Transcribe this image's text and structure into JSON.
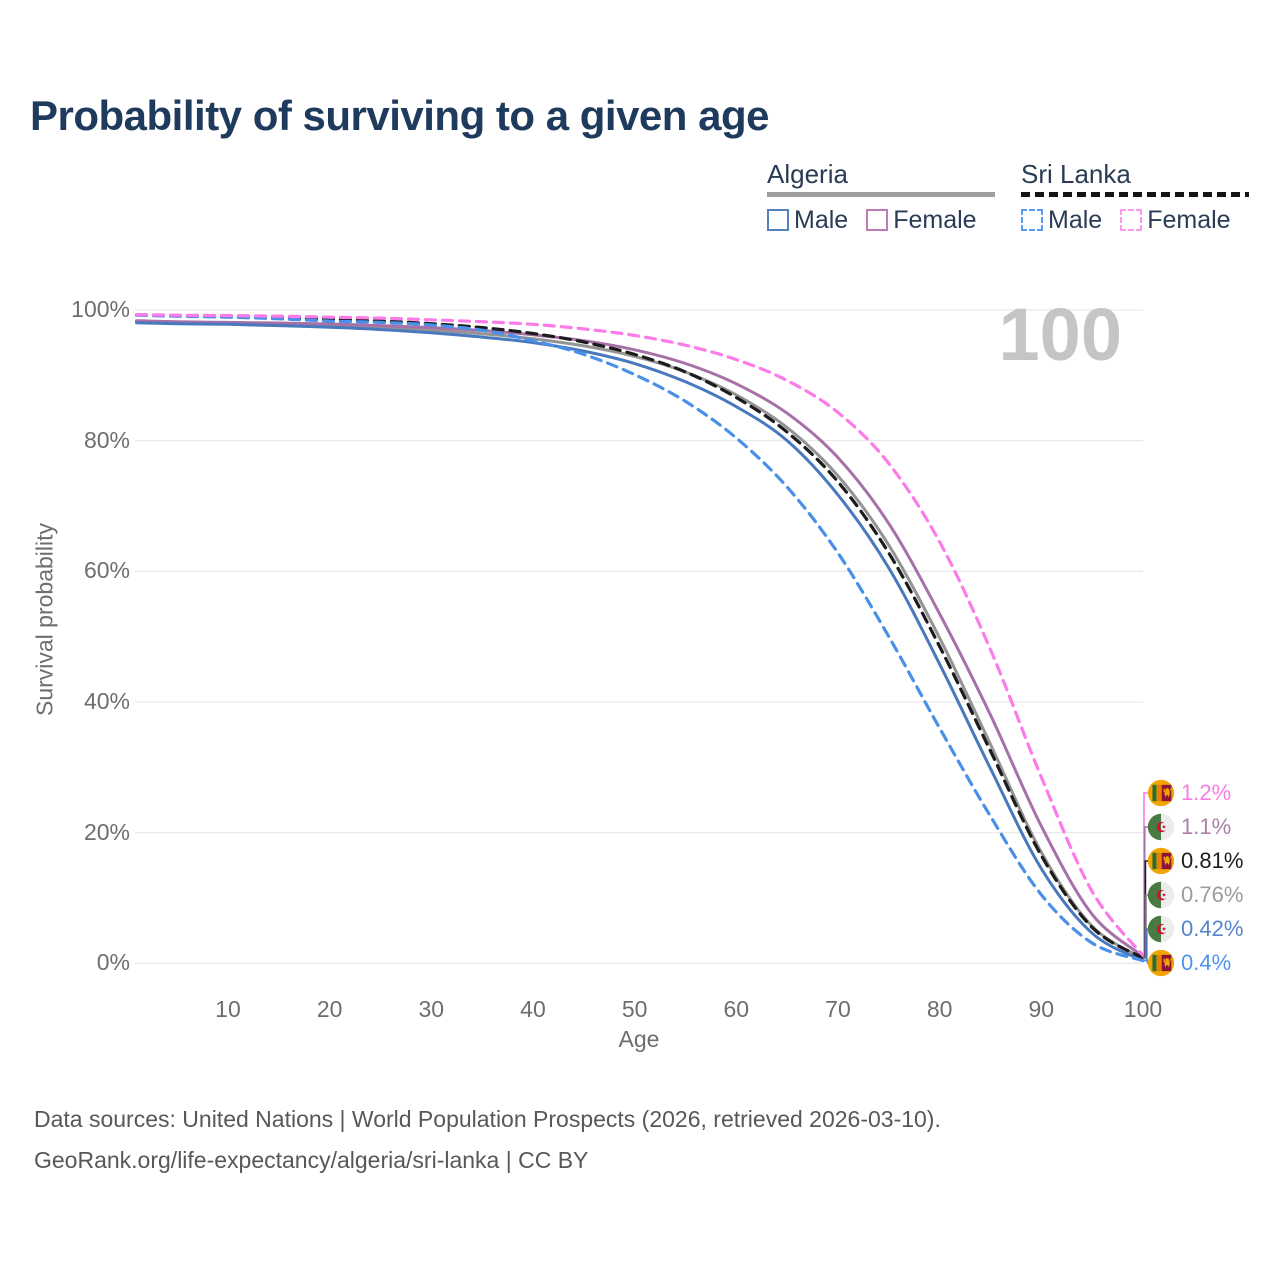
{
  "title": "Probability of surviving to a given age",
  "legend": {
    "groups": [
      {
        "country": "Algeria",
        "line_style": "solid",
        "rule_color": "#9e9e9e",
        "items": [
          {
            "label": "Male",
            "swatch_color": "#5580c1",
            "dashed": false
          },
          {
            "label": "Female",
            "swatch_color": "#bc7cb4",
            "dashed": false
          }
        ]
      },
      {
        "country": "Sri Lanka",
        "line_style": "dashed",
        "rule_color": "#141414",
        "items": [
          {
            "label": "Male",
            "swatch_color": "#5b9bf8",
            "dashed": true
          },
          {
            "label": "Female",
            "swatch_color": "#fb98ee",
            "dashed": true
          }
        ]
      }
    ]
  },
  "chart_data": {
    "type": "line",
    "title": "Probability of surviving to a given age",
    "xlabel": "Age",
    "ylabel": "Survival probability",
    "x_ticks": [
      10,
      20,
      30,
      40,
      50,
      60,
      70,
      80,
      90,
      100
    ],
    "y_ticks": [
      "0%",
      "20%",
      "40%",
      "60%",
      "80%",
      "100%"
    ],
    "xlim": [
      0,
      100
    ],
    "ylim": [
      0,
      100
    ],
    "grid": true,
    "hover_age_label": "100",
    "ages": [
      1,
      5,
      10,
      15,
      20,
      25,
      30,
      35,
      40,
      45,
      50,
      55,
      60,
      65,
      70,
      75,
      80,
      85,
      90,
      95,
      100
    ],
    "series": [
      {
        "name": "Algeria all",
        "country": "Algeria",
        "sex": "All",
        "color": "#949494",
        "dashed": false,
        "values": [
          98.2,
          98.05,
          97.95,
          97.8,
          97.6,
          97.3,
          96.9,
          96.35,
          95.6,
          94.5,
          92.9,
          90.5,
          87.0,
          82.0,
          74.6,
          64.0,
          49.8,
          33.5,
          17.0,
          5.7,
          0.76
        ]
      },
      {
        "name": "Algeria female",
        "country": "Algeria",
        "sex": "Female",
        "color": "#a770a8",
        "dashed": false,
        "values": [
          98.35,
          98.2,
          98.1,
          98.0,
          97.85,
          97.6,
          97.3,
          96.85,
          96.2,
          95.3,
          93.9,
          91.8,
          88.7,
          84.2,
          77.4,
          67.3,
          53.5,
          38.0,
          21.0,
          7.5,
          1.1
        ]
      },
      {
        "name": "Algeria male",
        "country": "Algeria",
        "sex": "Male",
        "color": "#4878bd",
        "dashed": false,
        "values": [
          98.05,
          97.9,
          97.8,
          97.6,
          97.35,
          97.0,
          96.5,
          95.85,
          95.0,
          93.7,
          91.8,
          89.0,
          85.2,
          80.0,
          71.7,
          60.5,
          45.8,
          29.8,
          14.5,
          4.6,
          0.42
        ]
      },
      {
        "name": "Sri Lanka all",
        "country": "Sri Lanka",
        "sex": "All",
        "color": "#1c1c1c",
        "dashed": true,
        "values": [
          99.25,
          99.1,
          99.0,
          98.85,
          98.6,
          98.3,
          97.9,
          97.3,
          96.4,
          95.1,
          93.2,
          90.5,
          86.6,
          81.3,
          73.7,
          62.8,
          48.5,
          32.5,
          16.5,
          5.5,
          0.81
        ]
      },
      {
        "name": "Sri Lanka male",
        "country": "Sri Lanka",
        "sex": "Male",
        "color": "#4a90e8",
        "dashed": true,
        "values": [
          99.2,
          99.05,
          98.9,
          98.65,
          98.3,
          98.1,
          97.7,
          96.9,
          95.3,
          93.2,
          90.1,
          86.0,
          80.4,
          72.9,
          62.8,
          50.0,
          36.0,
          22.5,
          10.5,
          3.1,
          0.4
        ]
      },
      {
        "name": "Sri Lanka female",
        "country": "Sri Lanka",
        "sex": "Female",
        "color": "#fb7ce8",
        "dashed": true,
        "values": [
          99.3,
          99.2,
          99.15,
          99.05,
          98.9,
          98.75,
          98.5,
          98.2,
          97.8,
          97.1,
          96.1,
          94.6,
          92.4,
          89.2,
          84.3,
          76.5,
          64.5,
          48.0,
          28.5,
          11.0,
          1.2
        ]
      }
    ],
    "end_labels": [
      {
        "text": "1.2%",
        "color": "#f87ce8",
        "flag": "sri-lanka",
        "series": "Sri Lanka female",
        "value": 1.2
      },
      {
        "text": "1.1%",
        "color": "#ad7fab",
        "flag": "algeria",
        "series": "Algeria female",
        "value": 1.1
      },
      {
        "text": "0.81%",
        "color": "#1d1d1d",
        "flag": "sri-lanka",
        "series": "Sri Lanka all",
        "value": 0.81
      },
      {
        "text": "0.76%",
        "color": "#9c9c9c",
        "flag": "algeria",
        "series": "Algeria all",
        "value": 0.76
      },
      {
        "text": "0.42%",
        "color": "#5585cc",
        "flag": "algeria",
        "series": "Algeria male",
        "value": 0.42
      },
      {
        "text": "0.4%",
        "color": "#4e93f0",
        "flag": "sri-lanka",
        "series": "Sri Lanka male",
        "value": 0.4
      }
    ]
  },
  "footer": {
    "line1": "Data sources: United Nations | World Population Prospects (2026, retrieved 2026-03-10).",
    "line2": "GeoRank.org/life-expectancy/algeria/sri-lanka | CC BY"
  }
}
